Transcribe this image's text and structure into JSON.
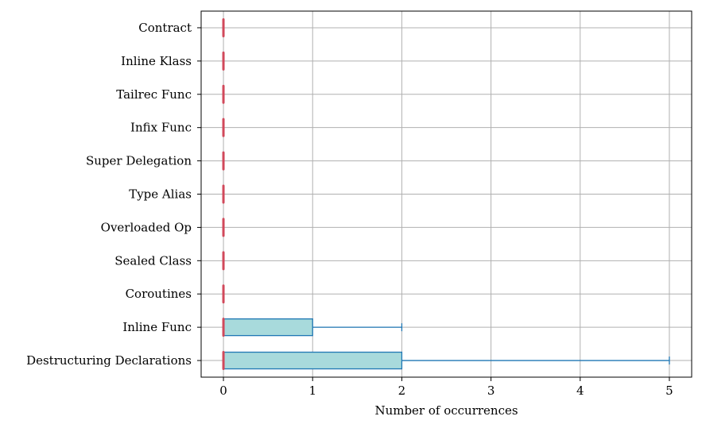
{
  "chart_data": {
    "type": "boxplot",
    "orientation": "horizontal",
    "title": "",
    "xlabel": "Number of occurrences",
    "ylabel": "",
    "xlim": [
      -0.25,
      5.25
    ],
    "xticks": [
      0,
      1,
      2,
      3,
      4,
      5
    ],
    "grid": true,
    "categories": [
      "Destructuring Declarations",
      "Inline Func",
      "Coroutines",
      "Sealed Class",
      "Overloaded Op",
      "Type Alias",
      "Super Delegation",
      "Infix Func",
      "Tailrec Func",
      "Inline Klass",
      "Contract"
    ],
    "boxes": [
      {
        "whisker_low": 0,
        "q1": 0,
        "median": 0,
        "q3": 2,
        "whisker_high": 5
      },
      {
        "whisker_low": 0,
        "q1": 0,
        "median": 0,
        "q3": 1,
        "whisker_high": 2
      },
      {
        "whisker_low": 0,
        "q1": 0,
        "median": 0,
        "q3": 0,
        "whisker_high": 0
      },
      {
        "whisker_low": 0,
        "q1": 0,
        "median": 0,
        "q3": 0,
        "whisker_high": 0
      },
      {
        "whisker_low": 0,
        "q1": 0,
        "median": 0,
        "q3": 0,
        "whisker_high": 0
      },
      {
        "whisker_low": 0,
        "q1": 0,
        "median": 0,
        "q3": 0,
        "whisker_high": 0
      },
      {
        "whisker_low": 0,
        "q1": 0,
        "median": 0,
        "q3": 0,
        "whisker_high": 0
      },
      {
        "whisker_low": 0,
        "q1": 0,
        "median": 0,
        "q3": 0,
        "whisker_high": 0
      },
      {
        "whisker_low": 0,
        "q1": 0,
        "median": 0,
        "q3": 0,
        "whisker_high": 0
      },
      {
        "whisker_low": 0,
        "q1": 0,
        "median": 0,
        "q3": 0,
        "whisker_high": 0
      },
      {
        "whisker_low": 0,
        "q1": 0,
        "median": 0,
        "q3": 0,
        "whisker_high": 0
      }
    ],
    "colors": {
      "box_fill": "#a8dadc",
      "box_edge": "#1f77b4",
      "median": "#d1495b",
      "grid": "#b0b0b0",
      "axis": "#000000"
    }
  }
}
